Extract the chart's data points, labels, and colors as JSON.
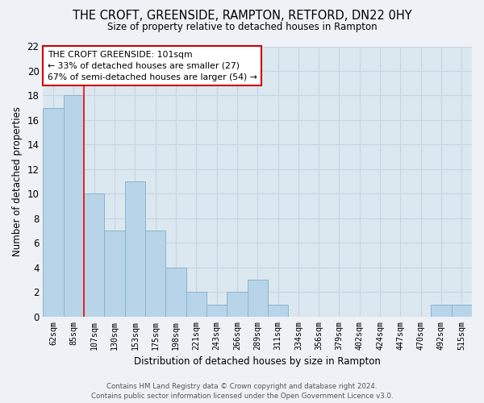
{
  "title": "THE CROFT, GREENSIDE, RAMPTON, RETFORD, DN22 0HY",
  "subtitle": "Size of property relative to detached houses in Rampton",
  "xlabel": "Distribution of detached houses by size in Rampton",
  "ylabel": "Number of detached properties",
  "categories": [
    "62sqm",
    "85sqm",
    "107sqm",
    "130sqm",
    "153sqm",
    "175sqm",
    "198sqm",
    "221sqm",
    "243sqm",
    "266sqm",
    "289sqm",
    "311sqm",
    "334sqm",
    "356sqm",
    "379sqm",
    "402sqm",
    "424sqm",
    "447sqm",
    "470sqm",
    "492sqm",
    "515sqm"
  ],
  "values": [
    17,
    18,
    10,
    7,
    11,
    7,
    4,
    2,
    1,
    2,
    3,
    1,
    0,
    0,
    0,
    0,
    0,
    0,
    0,
    1,
    1
  ],
  "bar_color": "#b8d4e8",
  "bar_edge_color": "#8ab4cc",
  "red_line_x": 1.5,
  "annotation_text": "THE CROFT GREENSIDE: 101sqm\n← 33% of detached houses are smaller (27)\n67% of semi-detached houses are larger (54) →",
  "annotation_box_facecolor": "#ffffff",
  "annotation_box_edgecolor": "#cc0000",
  "ylim": [
    0,
    22
  ],
  "yticks": [
    0,
    2,
    4,
    6,
    8,
    10,
    12,
    14,
    16,
    18,
    20,
    22
  ],
  "grid_color": "#c8d4e0",
  "bg_color": "#dce8f0",
  "fig_facecolor": "#eef2f6",
  "footer": "Contains HM Land Registry data © Crown copyright and database right 2024.\nContains public sector information licensed under the Open Government Licence v3.0."
}
